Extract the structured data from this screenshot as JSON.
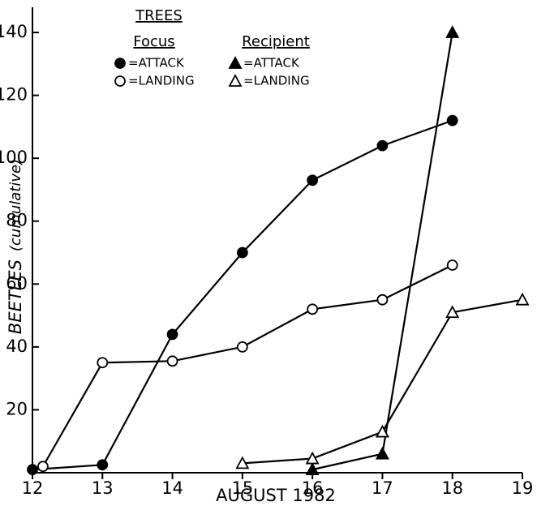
{
  "chart_data": {
    "type": "line",
    "x_label": "AUGUST 1982",
    "y_label": "BEETLES",
    "y_label_note": "(cumulative)",
    "xlim": [
      12,
      19
    ],
    "xticks": [
      12,
      13,
      14,
      15,
      16,
      17,
      18,
      19
    ],
    "ylim": [
      0,
      148
    ],
    "yticks": [
      20,
      40,
      60,
      80,
      100,
      120,
      140
    ],
    "legend": {
      "title": "TREES",
      "groups": [
        "Focus",
        "Recipient"
      ]
    },
    "series": [
      {
        "name": "=ATTACK",
        "group": 0,
        "marker": "circle",
        "filled": true,
        "color": "#000000",
        "x": [
          12,
          13,
          14,
          15,
          16,
          17,
          18
        ],
        "values": [
          1,
          2.5,
          44,
          70,
          93,
          104,
          112
        ]
      },
      {
        "name": "=LANDING",
        "group": 0,
        "marker": "circle",
        "filled": false,
        "color": "#000000",
        "x": [
          12.15,
          13,
          14,
          15,
          16,
          17,
          18
        ],
        "values": [
          2,
          35,
          35.5,
          40,
          52,
          55,
          66
        ]
      },
      {
        "name": "=ATTACK",
        "group": 1,
        "marker": "triangle",
        "filled": true,
        "color": "#000000",
        "x": [
          16,
          17,
          18
        ],
        "values": [
          1,
          6,
          140
        ]
      },
      {
        "name": "=LANDING",
        "group": 1,
        "marker": "triangle",
        "filled": false,
        "color": "#000000",
        "x": [
          15,
          16,
          17,
          18,
          19
        ],
        "values": [
          3,
          4.5,
          13,
          51,
          55
        ]
      }
    ]
  }
}
